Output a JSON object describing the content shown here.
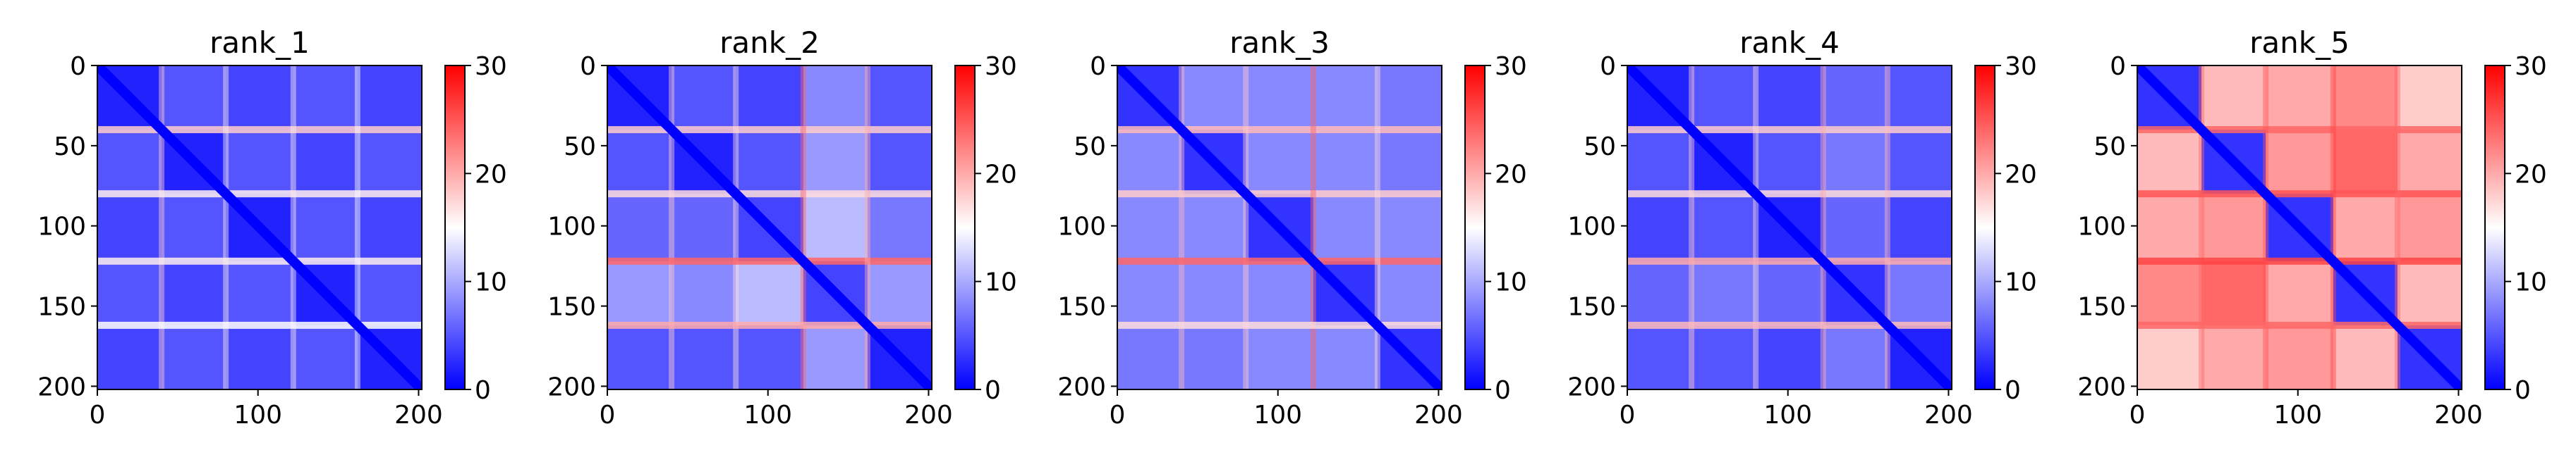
{
  "chart_data": [
    {
      "type": "heatmap",
      "title": "rank_1",
      "x_ticks": [
        0,
        100,
        200
      ],
      "y_ticks": [
        0,
        50,
        100,
        150,
        200
      ],
      "xlim": [
        0,
        202
      ],
      "ylim": [
        202,
        0
      ],
      "colorbar": {
        "min": 0,
        "max": 30,
        "ticks": [
          0,
          10,
          20,
          30
        ]
      },
      "colormap": [
        "#0000ff",
        "#ffffff",
        "#ff0000"
      ],
      "boundaries": [
        0,
        40,
        80,
        122,
        162,
        202
      ],
      "block_values": [
        [
          2,
          5,
          4,
          5,
          4
        ],
        [
          5,
          2,
          5,
          4,
          5
        ],
        [
          4,
          5,
          2,
          5,
          4
        ],
        [
          5,
          4,
          5,
          2,
          5
        ],
        [
          4,
          5,
          4,
          5,
          2
        ]
      ],
      "line_values": [
        18,
        16,
        16,
        15
      ]
    },
    {
      "type": "heatmap",
      "title": "rank_2",
      "x_ticks": [
        0,
        100,
        200
      ],
      "y_ticks": [
        0,
        50,
        100,
        150,
        200
      ],
      "xlim": [
        0,
        202
      ],
      "ylim": [
        202,
        0
      ],
      "colorbar": {
        "min": 0,
        "max": 30,
        "ticks": [
          0,
          10,
          20,
          30
        ]
      },
      "colormap": [
        "#0000ff",
        "#ffffff",
        "#ff0000"
      ],
      "boundaries": [
        0,
        40,
        80,
        122,
        162,
        202
      ],
      "block_values": [
        [
          2,
          5,
          4,
          8,
          5
        ],
        [
          5,
          2,
          5,
          9,
          5
        ],
        [
          6,
          6,
          4,
          11,
          7
        ],
        [
          9,
          8,
          11,
          4,
          9
        ],
        [
          5,
          5,
          5,
          9,
          2
        ]
      ],
      "line_values": [
        18,
        17,
        24,
        20
      ]
    },
    {
      "type": "heatmap",
      "title": "rank_3",
      "x_ticks": [
        0,
        100,
        200
      ],
      "y_ticks": [
        0,
        50,
        100,
        150,
        200
      ],
      "xlim": [
        0,
        202
      ],
      "ylim": [
        202,
        0
      ],
      "colorbar": {
        "min": 0,
        "max": 30,
        "ticks": [
          0,
          10,
          20,
          30
        ]
      },
      "colormap": [
        "#0000ff",
        "#ffffff",
        "#ff0000"
      ],
      "boundaries": [
        0,
        40,
        80,
        122,
        162,
        202
      ],
      "block_values": [
        [
          3,
          8,
          8,
          8,
          7
        ],
        [
          8,
          3,
          8,
          8,
          7
        ],
        [
          8,
          8,
          3,
          8,
          8
        ],
        [
          8,
          8,
          8,
          3,
          8
        ],
        [
          7,
          7,
          8,
          8,
          3
        ]
      ],
      "line_values": [
        19,
        18,
        24,
        17
      ]
    },
    {
      "type": "heatmap",
      "title": "rank_4",
      "x_ticks": [
        0,
        100,
        200
      ],
      "y_ticks": [
        0,
        50,
        100,
        150,
        200
      ],
      "xlim": [
        0,
        202
      ],
      "ylim": [
        202,
        0
      ],
      "colorbar": {
        "min": 0,
        "max": 30,
        "ticks": [
          0,
          10,
          20,
          30
        ]
      },
      "colormap": [
        "#0000ff",
        "#ffffff",
        "#ff0000"
      ],
      "boundaries": [
        0,
        40,
        80,
        122,
        162,
        202
      ],
      "block_values": [
        [
          2,
          5,
          4,
          6,
          5
        ],
        [
          5,
          2,
          5,
          7,
          5
        ],
        [
          4,
          5,
          2,
          6,
          4
        ],
        [
          6,
          7,
          6,
          3,
          7
        ],
        [
          5,
          5,
          4,
          7,
          2
        ]
      ],
      "line_values": [
        18,
        17,
        20,
        19
      ]
    },
    {
      "type": "heatmap",
      "title": "rank_5",
      "x_ticks": [
        0,
        100,
        200
      ],
      "y_ticks": [
        0,
        50,
        100,
        150,
        200
      ],
      "xlim": [
        0,
        202
      ],
      "ylim": [
        202,
        0
      ],
      "colorbar": {
        "min": 0,
        "max": 30,
        "ticks": [
          0,
          10,
          20,
          30
        ]
      },
      "colormap": [
        "#0000ff",
        "#ffffff",
        "#ff0000"
      ],
      "boundaries": [
        0,
        40,
        80,
        122,
        162,
        202
      ],
      "block_values": [
        [
          3,
          19,
          20,
          22,
          18
        ],
        [
          19,
          3,
          21,
          24,
          20
        ],
        [
          20,
          21,
          3,
          20,
          21
        ],
        [
          22,
          24,
          20,
          3,
          19
        ],
        [
          18,
          20,
          21,
          19,
          3
        ]
      ],
      "line_values": [
        24,
        25,
        26,
        24
      ]
    }
  ]
}
